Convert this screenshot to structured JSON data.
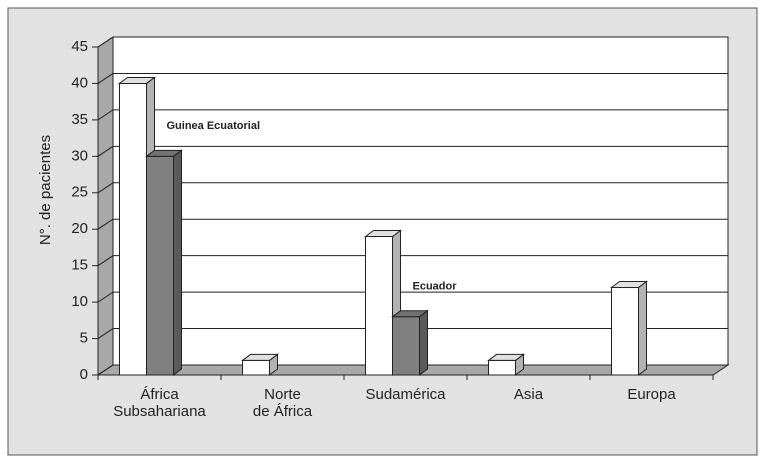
{
  "chart_data": {
    "type": "bar3d",
    "y_label": "N°. de pacientes",
    "categories": [
      "África\nSubsahariana",
      "Norte\nde África",
      "Sudamérica",
      "Asia",
      "Europa"
    ],
    "series": [
      {
        "color": "#ffffff",
        "values": [
          40,
          2,
          19,
          2,
          12
        ]
      },
      {
        "color": "#808080",
        "values": [
          30,
          null,
          8,
          null,
          null
        ],
        "annotations": [
          "Guinea Ecuatorial",
          null,
          "Ecuador",
          null,
          null
        ]
      }
    ],
    "ylim": [
      0,
      45
    ],
    "yticks": [
      0,
      5,
      10,
      15,
      20,
      25,
      30,
      35,
      40,
      45
    ],
    "grid": true
  }
}
